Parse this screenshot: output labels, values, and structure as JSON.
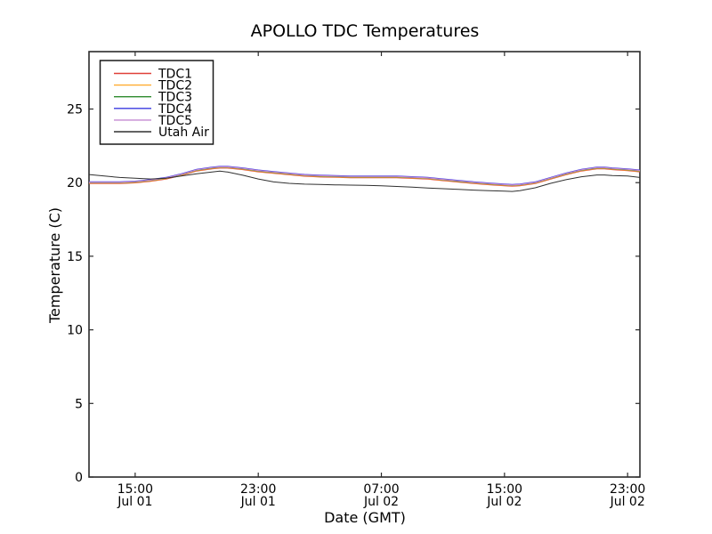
{
  "chart_data": {
    "type": "line",
    "title": "APOLLO TDC Temperatures",
    "xlabel": "Date (GMT)",
    "ylabel": "Temperature (C)",
    "grid": false,
    "legend_position": "upper left",
    "background": "#ffffff",
    "axis_color": "#2b2b2b",
    "text_color": "#000000",
    "ylim": [
      0,
      28.9
    ],
    "yticks": [
      0,
      5,
      10,
      15,
      20,
      25
    ],
    "x_axis_note": "hours after Jul 01 12:00 GMT",
    "xlim_hours": [
      0,
      35.8
    ],
    "xticks": [
      {
        "hours": 3,
        "time": "15:00",
        "date": "Jul 01"
      },
      {
        "hours": 11,
        "time": "23:00",
        "date": "Jul 01"
      },
      {
        "hours": 19,
        "time": "07:00",
        "date": "Jul 02"
      },
      {
        "hours": 27,
        "time": "15:00",
        "date": "Jul 02"
      },
      {
        "hours": 35,
        "time": "23:00",
        "date": "Jul 02"
      }
    ],
    "x_hours": [
      0,
      1,
      2,
      3,
      4,
      5,
      6,
      7,
      8,
      8.5,
      9,
      10,
      11,
      12,
      13,
      14,
      15,
      16,
      17,
      18,
      19,
      20,
      21,
      22,
      23,
      24,
      25,
      26,
      27,
      27.5,
      28,
      29,
      30,
      31,
      32,
      33,
      33.5,
      34,
      35,
      35.8
    ],
    "series": [
      {
        "name": "TDC1",
        "color": "#e04038",
        "values": [
          19.94,
          19.94,
          19.94,
          19.99,
          20.09,
          20.24,
          20.49,
          20.79,
          20.94,
          20.99,
          20.99,
          20.89,
          20.74,
          20.64,
          20.54,
          20.44,
          20.39,
          20.36,
          20.34,
          20.34,
          20.34,
          20.34,
          20.29,
          20.24,
          20.14,
          20.04,
          19.94,
          19.86,
          19.79,
          19.76,
          19.79,
          19.94,
          20.24,
          20.54,
          20.79,
          20.94,
          20.94,
          20.89,
          20.82,
          20.74
        ]
      },
      {
        "name": "TDC2",
        "color": "#ffac30",
        "values": [
          19.97,
          19.97,
          19.97,
          20.02,
          20.12,
          20.27,
          20.52,
          20.82,
          20.97,
          21.02,
          21.02,
          20.92,
          20.77,
          20.67,
          20.57,
          20.47,
          20.42,
          20.39,
          20.37,
          20.37,
          20.37,
          20.37,
          20.32,
          20.27,
          20.17,
          20.07,
          19.97,
          19.89,
          19.82,
          19.79,
          19.82,
          19.97,
          20.27,
          20.57,
          20.82,
          20.97,
          20.97,
          20.92,
          20.85,
          20.77
        ]
      },
      {
        "name": "TDC3",
        "color": "#2e8b2e",
        "values": [
          20.0,
          20.0,
          20.0,
          20.05,
          20.15,
          20.3,
          20.55,
          20.85,
          21.0,
          21.05,
          21.05,
          20.95,
          20.8,
          20.7,
          20.6,
          20.5,
          20.45,
          20.42,
          20.4,
          20.4,
          20.4,
          20.4,
          20.35,
          20.3,
          20.2,
          20.1,
          20.0,
          19.92,
          19.85,
          19.82,
          19.85,
          20.0,
          20.3,
          20.6,
          20.85,
          21.0,
          21.0,
          20.95,
          20.88,
          20.8
        ]
      },
      {
        "name": "TDC4",
        "color": "#3a3ae0",
        "values": [
          20.05,
          20.05,
          20.05,
          20.1,
          20.2,
          20.35,
          20.6,
          20.9,
          21.05,
          21.1,
          21.1,
          21.0,
          20.85,
          20.75,
          20.65,
          20.55,
          20.5,
          20.47,
          20.45,
          20.45,
          20.45,
          20.45,
          20.4,
          20.35,
          20.25,
          20.15,
          20.05,
          19.97,
          19.9,
          19.87,
          19.9,
          20.05,
          20.35,
          20.65,
          20.9,
          21.05,
          21.05,
          21.0,
          20.93,
          20.85
        ]
      },
      {
        "name": "TDC5",
        "color": "#c489d2",
        "values": [
          20.02,
          20.02,
          20.02,
          20.07,
          20.17,
          20.32,
          20.57,
          20.87,
          21.02,
          21.07,
          21.07,
          20.97,
          20.82,
          20.72,
          20.62,
          20.52,
          20.47,
          20.44,
          20.42,
          20.42,
          20.42,
          20.42,
          20.37,
          20.32,
          20.22,
          20.12,
          20.02,
          19.94,
          19.87,
          19.84,
          19.87,
          20.02,
          20.32,
          20.62,
          20.87,
          21.02,
          21.02,
          20.97,
          20.9,
          20.82
        ]
      },
      {
        "name": "Utah Air",
        "color": "#303030",
        "values": [
          20.55,
          20.45,
          20.35,
          20.3,
          20.25,
          20.3,
          20.45,
          20.6,
          20.72,
          20.78,
          20.72,
          20.5,
          20.25,
          20.05,
          19.95,
          19.9,
          19.88,
          19.85,
          19.83,
          19.81,
          19.79,
          19.74,
          19.69,
          19.64,
          19.59,
          19.54,
          19.49,
          19.45,
          19.42,
          19.4,
          19.45,
          19.65,
          19.95,
          20.2,
          20.4,
          20.52,
          20.52,
          20.48,
          20.45,
          20.35
        ]
      }
    ]
  }
}
